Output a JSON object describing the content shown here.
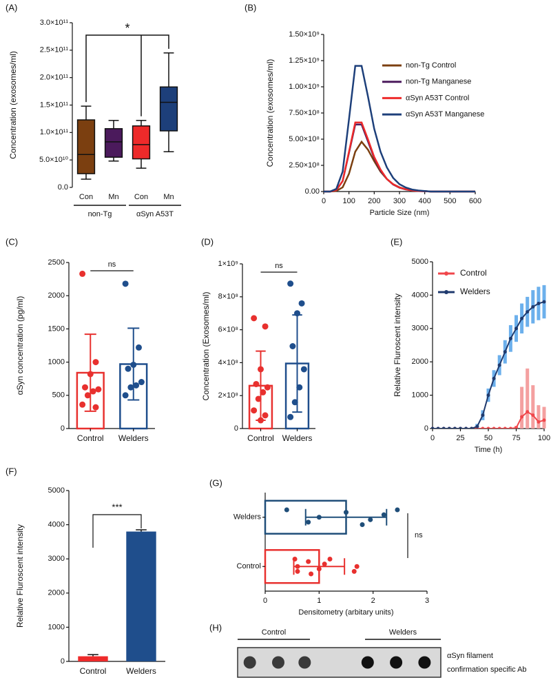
{
  "chart_data": [
    {
      "type": "box",
      "panel": "(A)",
      "ylabel": "Concentration (exosomes/ml)",
      "ylim": [
        0,
        300000000000.0
      ],
      "yticks": [
        {
          "value": 0,
          "label": "0.0"
        },
        {
          "value": 50000000000.0,
          "label": "5.0×10¹⁰"
        },
        {
          "value": 100000000000.0,
          "label": "1.0×10¹¹"
        },
        {
          "value": 150000000000.0,
          "label": "1.5×10¹¹"
        },
        {
          "value": 200000000000.0,
          "label": "2.0×10¹¹"
        },
        {
          "value": 250000000000.0,
          "label": "2.5×10¹¹"
        },
        {
          "value": 300000000000.0,
          "label": "3.0×10¹¹"
        }
      ],
      "categories": [
        "Con",
        "Mn",
        "Con",
        "Mn"
      ],
      "groups": [
        "non-Tg",
        "αSyn A53T"
      ],
      "annotation": "*",
      "boxes": [
        {
          "color": "#7b3f10",
          "min": 15000000000.0,
          "q1": 25000000000.0,
          "median": 60000000000.0,
          "q3": 123000000000.0,
          "max": 148000000000.0
        },
        {
          "color": "#4b1a5c",
          "min": 48000000000.0,
          "q1": 55000000000.0,
          "median": 83000000000.0,
          "q3": 107000000000.0,
          "max": 122000000000.0
        },
        {
          "color": "#ee2a2a",
          "min": 35000000000.0,
          "q1": 52000000000.0,
          "median": 78000000000.0,
          "q3": 112000000000.0,
          "max": 122000000000.0
        },
        {
          "color": "#1d3f7a",
          "min": 65000000000.0,
          "q1": 103000000000.0,
          "median": 155000000000.0,
          "q3": 183000000000.0,
          "max": 245000000000.0
        }
      ]
    },
    {
      "type": "line",
      "panel": "(B)",
      "xlabel": "Particle Size (nm)",
      "ylabel": "Concentration (exosomes/ml)",
      "xlim": [
        0,
        600
      ],
      "xticks": [
        0,
        100,
        200,
        300,
        400,
        500,
        600
      ],
      "ylim": [
        0,
        1500000000.0
      ],
      "yticks": [
        {
          "value": 0,
          "label": "0.00"
        },
        {
          "value": 250000000.0,
          "label": "2.50×10⁸"
        },
        {
          "value": 500000000.0,
          "label": "5.00×10⁸"
        },
        {
          "value": 750000000.0,
          "label": "7.50×10⁸"
        },
        {
          "value": 1000000000.0,
          "label": "1.00×10⁹"
        },
        {
          "value": 1250000000.0,
          "label": "1.25×10⁹"
        },
        {
          "value": 1500000000.0,
          "label": "1.50×10⁹"
        }
      ],
      "x": [
        0,
        25,
        50,
        75,
        100,
        125,
        150,
        175,
        200,
        225,
        250,
        275,
        300,
        325,
        350,
        375,
        400,
        425,
        450,
        475,
        500,
        525,
        550,
        575,
        600
      ],
      "series": [
        {
          "name": "non-Tg Control",
          "color": "#7b3f10",
          "values": [
            0,
            0,
            5000000.0,
            40000000.0,
            170000000.0,
            380000000.0,
            475000000.0,
            400000000.0,
            290000000.0,
            190000000.0,
            120000000.0,
            70000000.0,
            40000000.0,
            22000000.0,
            11000000.0,
            6000000.0,
            3000000.0,
            0,
            0,
            0,
            0,
            0,
            0,
            0,
            0
          ]
        },
        {
          "name": "non-Tg Manganese",
          "color": "#4b1a5c",
          "values": [
            0,
            0,
            13000000.0,
            100000000.0,
            370000000.0,
            640000000.0,
            640000000.0,
            480000000.0,
            320000000.0,
            200000000.0,
            120000000.0,
            67000000.0,
            37000000.0,
            20000000.0,
            10000000.0,
            5000000.0,
            3000000.0,
            0,
            0,
            0,
            0,
            0,
            0,
            0,
            0
          ]
        },
        {
          "name": "αSyn A53T Control",
          "color": "#ee2a2a",
          "values": [
            0,
            0,
            14000000.0,
            100000000.0,
            380000000.0,
            660000000.0,
            660000000.0,
            500000000.0,
            330000000.0,
            210000000.0,
            120000000.0,
            70000000.0,
            38000000.0,
            21000000.0,
            10000000.0,
            5000000.0,
            3000000.0,
            0,
            0,
            0,
            0,
            0,
            0,
            0,
            0
          ]
        },
        {
          "name": "αSyn A53T Manganese",
          "color": "#1d3f7a",
          "values": [
            0,
            0,
            25000000.0,
            190000000.0,
            690000000.0,
            1200000000.0,
            1200000000.0,
            910000000.0,
            600000000.0,
            380000000.0,
            230000000.0,
            130000000.0,
            70000000.0,
            38000000.0,
            19000000.0,
            10000000.0,
            5000000.0,
            0,
            0,
            0,
            0,
            0,
            0,
            0,
            0
          ]
        }
      ]
    },
    {
      "type": "barpoints",
      "panel": "(C)",
      "ylabel": "αSyn concentration (pg/ml)",
      "ylim": [
        0,
        2500
      ],
      "yticks": [
        0,
        500,
        1000,
        1500,
        2000,
        2500
      ],
      "categories": [
        "Control",
        "Welders"
      ],
      "annotation": "ns",
      "bars": [
        {
          "color": "#e8302e",
          "mean": 840,
          "sd": 580,
          "points": [
            2330,
            1000,
            820,
            620,
            590,
            560,
            500,
            360,
            320
          ]
        },
        {
          "color": "#1f4e8c",
          "mean": 970,
          "sd": 540,
          "points": [
            2180,
            1220,
            960,
            900,
            700,
            650,
            620,
            500
          ]
        }
      ]
    },
    {
      "type": "barpoints",
      "panel": "(D)",
      "ylabel": "Concentration (Exosomes/ml)",
      "ylim": [
        0,
        1000000000.0
      ],
      "yticks": [
        0,
        {
          "value": 200000000.0,
          "label": "2×10⁸"
        },
        {
          "value": 400000000.0,
          "label": "4×10⁸"
        },
        {
          "value": 600000000.0,
          "label": "6×10⁸"
        },
        {
          "value": 800000000.0,
          "label": "8×10⁸"
        },
        {
          "value": 1000000000.0,
          "label": "1×10⁹"
        }
      ],
      "categories": [
        "Control",
        "Welders"
      ],
      "annotation": "ns",
      "bars": [
        {
          "color": "#e8302e",
          "mean": 260000000.0,
          "sd": 210000000.0,
          "points": [
            670000000.0,
            620000000.0,
            360000000.0,
            270000000.0,
            250000000.0,
            220000000.0,
            180000000.0,
            110000000.0,
            80000000.0,
            50000000.0
          ]
        },
        {
          "color": "#1f4e8c",
          "mean": 395000000.0,
          "sd": 295000000.0,
          "points": [
            880000000.0,
            760000000.0,
            700000000.0,
            500000000.0,
            360000000.0,
            250000000.0,
            160000000.0,
            70000000.0
          ]
        }
      ]
    },
    {
      "type": "lineband",
      "panel": "(E)",
      "xlabel": "Time (h)",
      "ylabel": "Relative Fluroscent intensity",
      "xlim": [
        0,
        100
      ],
      "xticks": [
        0,
        25,
        50,
        75,
        100
      ],
      "ylim": [
        0,
        5000
      ],
      "yticks": [
        0,
        1000,
        2000,
        3000,
        4000,
        5000
      ],
      "x": [
        0,
        5,
        10,
        15,
        20,
        25,
        30,
        35,
        40,
        45,
        50,
        55,
        60,
        65,
        70,
        75,
        80,
        85,
        90,
        95,
        100
      ],
      "series": [
        {
          "name": "Control",
          "color": "#f0464b",
          "error_color": "#f4a0a0",
          "values": [
            0,
            0,
            0,
            0,
            0,
            0,
            0,
            0,
            0,
            0,
            0,
            0,
            0,
            0,
            0,
            20,
            350,
            500,
            400,
            200,
            250
          ],
          "errors": [
            10,
            10,
            10,
            10,
            10,
            10,
            10,
            10,
            10,
            10,
            10,
            10,
            10,
            10,
            10,
            60,
            900,
            1300,
            900,
            500,
            400
          ]
        },
        {
          "name": "Welders",
          "color": "#1f3a6e",
          "error_color": "#6cb0ec",
          "values": [
            0,
            0,
            0,
            0,
            0,
            0,
            0,
            0,
            60,
            400,
            1000,
            1500,
            1900,
            2300,
            2700,
            3000,
            3300,
            3500,
            3650,
            3750,
            3800
          ],
          "errors": [
            20,
            20,
            20,
            20,
            20,
            20,
            20,
            20,
            80,
            150,
            200,
            250,
            300,
            350,
            400,
            400,
            450,
            450,
            500,
            500,
            500
          ]
        }
      ]
    },
    {
      "type": "bar",
      "panel": "(F)",
      "ylabel": "Relative Fluroscent intensity",
      "ylim": [
        0,
        5000
      ],
      "yticks": [
        0,
        1000,
        2000,
        3000,
        4000,
        5000
      ],
      "categories": [
        "Control",
        "Welders"
      ],
      "annotation": "***",
      "bars": [
        {
          "color": "#ee2a2a",
          "value": 150,
          "error": 50
        },
        {
          "color": "#1f4e8c",
          "value": 3800,
          "error": 50
        }
      ]
    },
    {
      "type": "hbarpoints",
      "panel": "(G)",
      "xlabel": "Densitometry (arbitary units)",
      "xlim": [
        0,
        3
      ],
      "xticks": [
        0,
        1,
        2,
        3
      ],
      "categories": [
        "Control",
        "Welders"
      ],
      "annotation": "ns",
      "bars": [
        {
          "color": "#e8302e",
          "mean": 1.0,
          "sd": 0.47,
          "points": [
            0.55,
            0.6,
            0.6,
            0.8,
            0.85,
            1.0,
            1.1,
            1.2,
            1.65,
            1.7
          ]
        },
        {
          "color": "#1f4e79",
          "mean": 1.5,
          "sd": 0.75,
          "points": [
            0.4,
            0.8,
            1.0,
            1.5,
            1.8,
            1.95,
            2.2,
            2.45
          ]
        }
      ]
    },
    {
      "type": "blot",
      "panel": "(H)",
      "groups": [
        "Control",
        "Welders"
      ],
      "caption": [
        "αSyn filament",
        "confirmation  specific Ab"
      ]
    }
  ]
}
